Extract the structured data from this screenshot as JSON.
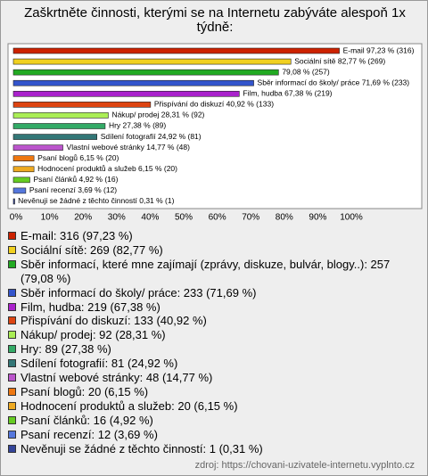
{
  "chart_data": {
    "type": "bar",
    "orientation": "horizontal",
    "title": "Zaškrtněte činnosti, kterými se na Internetu zabýváte alespoň 1x týdně:",
    "values": [
      97.23,
      82.77,
      79.08,
      71.69,
      67.38,
      40.92,
      28.31,
      27.38,
      24.92,
      14.77,
      6.15,
      6.15,
      4.92,
      3.69,
      0.31
    ],
    "value_labels": [
      "E-mail 97,23 % (316)",
      "Sociální sítě 82,77 % (269)",
      "79,08 % (257)",
      "Sběr informací do školy/ práce 71,69 % (233)",
      "Film, hudba 67,38 % (219)",
      "Přispívání do diskuzí 40,92 % (133)",
      "Nákup/ prodej 28,31 % (92)",
      "Hry 27,38 % (89)",
      "Sdílení fotografií 24,92 % (81)",
      "Vlastní webové stránky 14,77 % (48)",
      "Psaní blogů 6,15 % (20)",
      "Hodnocení produktů a služeb 6,15 % (20)",
      "Psaní článků 4,92 % (16)",
      "Psaní recenzí 3,69 % (12)",
      "Nevěnuji se žádné z těchto činností 0,31 % (1)"
    ],
    "colors": [
      "#cc2200",
      "#f0d020",
      "#22aa22",
      "#3355cc",
      "#aa22cc",
      "#dd4411",
      "#aaee55",
      "#33aa66",
      "#337777",
      "#bb55cc",
      "#ee7711",
      "#eeaa22",
      "#66cc22",
      "#5577dd",
      "#334499"
    ],
    "legend": [
      "E-mail: 316 (97,23 %)",
      "Sociální sítě: 269 (82,77 %)",
      "Sběr informací, které mne zajímají (zprávy, diskuze, bulvár, blogy..): 257 (79,08 %)",
      "Sběr informací do školy/ práce: 233 (71,69 %)",
      "Film, hudba: 219 (67,38 %)",
      "Přispívání do diskuzí: 133 (40,92 %)",
      "Nákup/ prodej: 92 (28,31 %)",
      "Hry: 89 (27,38 %)",
      "Sdílení fotografií: 81 (24,92 %)",
      "Vlastní webové stránky: 48 (14,77 %)",
      "Psaní blogů: 20 (6,15 %)",
      "Hodnocení produktů a služeb: 20 (6,15 %)",
      "Psaní článků: 16 (4,92 %)",
      "Psaní recenzí: 12 (3,69 %)",
      "Nevěnuji se žádné z těchto činností: 1 (0,31 %)"
    ],
    "xlim": [
      0,
      100
    ],
    "xticks": [
      {
        "value": 0,
        "label": "0%"
      },
      {
        "value": 10,
        "label": "10%"
      },
      {
        "value": 20,
        "label": "20%"
      },
      {
        "value": 30,
        "label": "30%"
      },
      {
        "value": 40,
        "label": "40%"
      },
      {
        "value": 50,
        "label": "50%"
      },
      {
        "value": 60,
        "label": "60%"
      },
      {
        "value": 70,
        "label": "70%"
      },
      {
        "value": 80,
        "label": "80%"
      },
      {
        "value": 90,
        "label": "90%"
      },
      {
        "value": 100,
        "label": "100%"
      }
    ],
    "source": "zdroj: https://chovani-uzivatele-internetu.vyplnto.cz"
  }
}
